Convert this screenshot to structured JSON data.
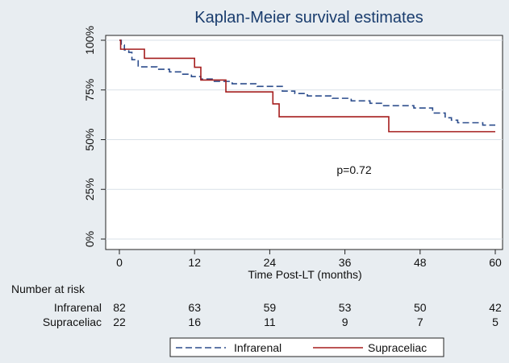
{
  "chart_data": {
    "type": "line",
    "title": "Kaplan-Meier survival estimates",
    "xlabel": "Time Post-LT (months)",
    "ylabel": "",
    "xlim": [
      0,
      60
    ],
    "ylim": [
      0,
      1
    ],
    "x_ticks": [
      "0",
      "12",
      "24",
      "36",
      "48",
      "60"
    ],
    "y_ticks": [
      "0%",
      "25%",
      "50%",
      "75%",
      "100%"
    ],
    "annotation": "p=0.72",
    "grid": "horizontal",
    "legend_position": "bottom",
    "series": [
      {
        "name": "Infrarenal",
        "color": "#2b4c8c",
        "style": "dashed",
        "points": [
          [
            0,
            1.0
          ],
          [
            0.3,
            0.976
          ],
          [
            0.8,
            0.951
          ],
          [
            1.5,
            0.939
          ],
          [
            2.0,
            0.902
          ],
          [
            3.0,
            0.866
          ],
          [
            6.0,
            0.854
          ],
          [
            8.0,
            0.841
          ],
          [
            10.0,
            0.829
          ],
          [
            11.5,
            0.817
          ],
          [
            13.0,
            0.805
          ],
          [
            15.0,
            0.793
          ],
          [
            18.0,
            0.781
          ],
          [
            22.0,
            0.768
          ],
          [
            26.0,
            0.744
          ],
          [
            28.0,
            0.732
          ],
          [
            30.0,
            0.72
          ],
          [
            34.0,
            0.708
          ],
          [
            37.0,
            0.695
          ],
          [
            40.0,
            0.683
          ],
          [
            42.0,
            0.671
          ],
          [
            47.0,
            0.659
          ],
          [
            50.0,
            0.634
          ],
          [
            52.0,
            0.61
          ],
          [
            53.0,
            0.598
          ],
          [
            54.0,
            0.585
          ],
          [
            58.0,
            0.573
          ],
          [
            60.0,
            0.573
          ]
        ]
      },
      {
        "name": "Supraceliac",
        "color": "#a51d1d",
        "style": "solid",
        "points": [
          [
            0,
            1.0
          ],
          [
            0.2,
            0.955
          ],
          [
            4.0,
            0.909
          ],
          [
            12.0,
            0.864
          ],
          [
            13.0,
            0.8
          ],
          [
            17.0,
            0.74
          ],
          [
            24.5,
            0.68
          ],
          [
            25.5,
            0.615
          ],
          [
            43.0,
            0.54
          ],
          [
            60.0,
            0.54
          ]
        ]
      }
    ]
  },
  "risk_table": {
    "heading": "Number at risk",
    "rows": [
      {
        "label": "Infrarenal",
        "values": [
          "82",
          "63",
          "59",
          "53",
          "50",
          "42"
        ]
      },
      {
        "label": "Supraceliac",
        "values": [
          "22",
          "16",
          "11",
          "9",
          "7",
          "5"
        ]
      }
    ]
  },
  "legend": {
    "items": [
      {
        "label": "Infrarenal",
        "color": "#2b4c8c",
        "style": "dashed"
      },
      {
        "label": "Supraceliac",
        "color": "#a51d1d",
        "style": "solid"
      }
    ]
  }
}
